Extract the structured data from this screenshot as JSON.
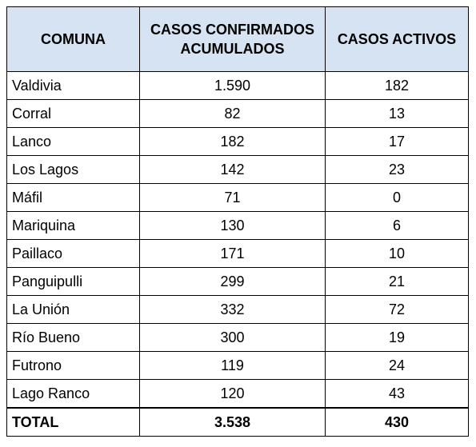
{
  "table": {
    "headers": {
      "comuna": "COMUNA",
      "confirmados_line1": "CASOS CONFIRMADOS",
      "confirmados_line2": "ACUMULADOS",
      "activos": "CASOS ACTIVOS"
    },
    "rows": [
      {
        "comuna": "Valdivia",
        "confirmados": "1.590",
        "activos": "182"
      },
      {
        "comuna": "Corral",
        "confirmados": "82",
        "activos": "13"
      },
      {
        "comuna": "Lanco",
        "confirmados": "182",
        "activos": "17"
      },
      {
        "comuna": "Los Lagos",
        "confirmados": "142",
        "activos": "23"
      },
      {
        "comuna": "Máfil",
        "confirmados": "71",
        "activos": "0"
      },
      {
        "comuna": "Mariquina",
        "confirmados": "130",
        "activos": "6"
      },
      {
        "comuna": "Paillaco",
        "confirmados": "171",
        "activos": "10"
      },
      {
        "comuna": "Panguipulli",
        "confirmados": "299",
        "activos": "21"
      },
      {
        "comuna": "La Unión",
        "confirmados": "332",
        "activos": "72"
      },
      {
        "comuna": "Río Bueno",
        "confirmados": "300",
        "activos": "19"
      },
      {
        "comuna": "Futrono",
        "confirmados": "119",
        "activos": "24"
      },
      {
        "comuna": "Lago Ranco",
        "confirmados": "120",
        "activos": "43"
      }
    ],
    "total": {
      "label": "TOTAL",
      "confirmados": "3.538",
      "activos": "430"
    }
  },
  "colors": {
    "header_bg": "#d6e3f2",
    "border": "#000000"
  }
}
